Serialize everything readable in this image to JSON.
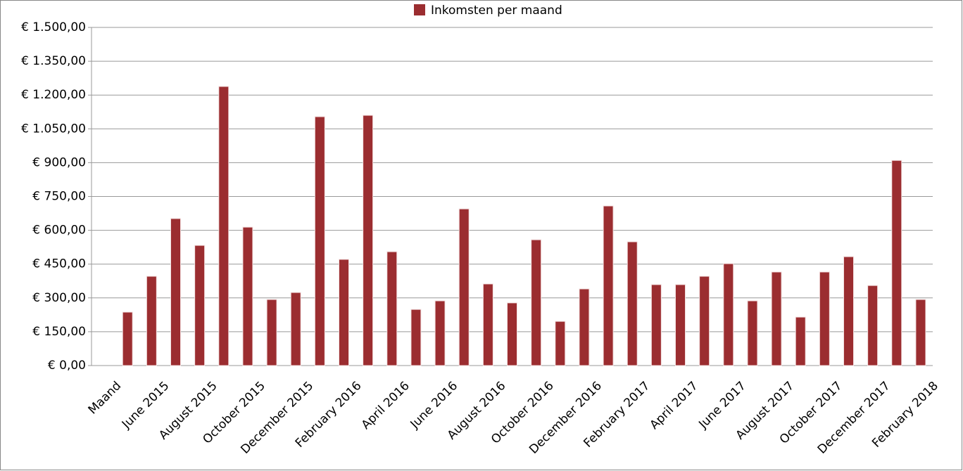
{
  "chart_data": {
    "type": "bar",
    "series": [
      {
        "name": "Inkomsten per maand",
        "color": "#9b2d30",
        "values": [
          null,
          237,
          396,
          652,
          533,
          1238,
          614,
          293,
          324,
          1104,
          471,
          1110,
          505,
          249,
          287,
          695,
          362,
          278,
          558,
          196,
          340,
          708,
          549,
          359,
          359,
          396,
          452,
          287,
          415,
          215,
          415,
          483,
          355,
          910,
          293
        ]
      }
    ],
    "categories": [
      "Maand",
      null,
      "June 2015",
      null,
      "August 2015",
      null,
      "October 2015",
      null,
      "December 2015",
      null,
      "February 2016",
      null,
      "April 2016",
      null,
      "June 2016",
      null,
      "August 2016",
      null,
      "October 2016",
      null,
      "December 2016",
      null,
      "February 2017",
      null,
      "April 2017",
      null,
      "June 2017",
      null,
      "August 2017",
      null,
      "October 2017",
      null,
      "December 2017",
      null,
      "February 2018"
    ],
    "ylim": [
      0,
      1500
    ],
    "yticks": [
      {
        "value": 0,
        "label": "€ 0,00"
      },
      {
        "value": 150,
        "label": "€ 150,00"
      },
      {
        "value": 300,
        "label": "€ 300,00"
      },
      {
        "value": 450,
        "label": "€ 450,00"
      },
      {
        "value": 600,
        "label": "€ 600,00"
      },
      {
        "value": 750,
        "label": "€ 750,00"
      },
      {
        "value": 900,
        "label": "€ 900,00"
      },
      {
        "value": 1050,
        "label": "€ 1.050,00"
      },
      {
        "value": 1200,
        "label": "€ 1.200,00"
      },
      {
        "value": 1350,
        "label": "€ 1.350,00"
      },
      {
        "value": 1500,
        "label": "€ 1.500,00"
      }
    ],
    "grid": true,
    "legend": "top"
  }
}
